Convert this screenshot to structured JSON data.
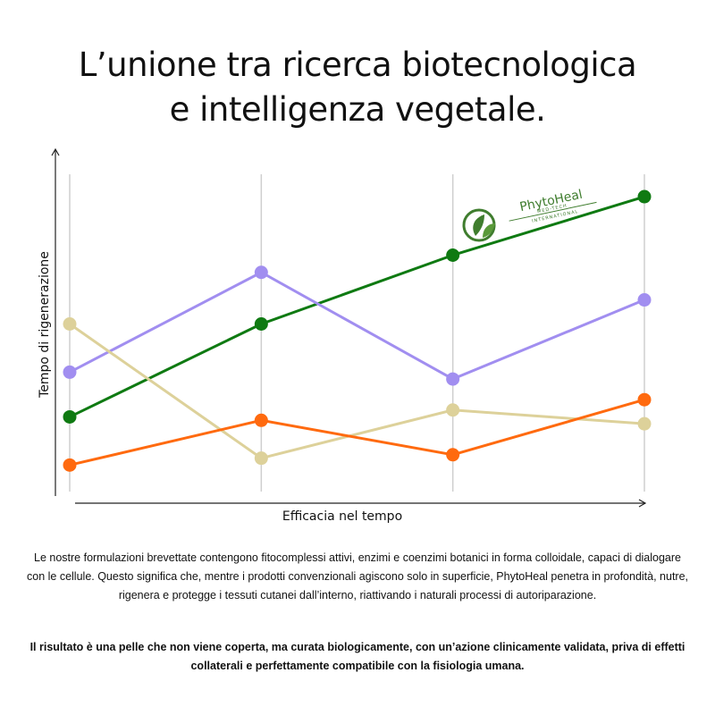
{
  "title_line1": "L’unione tra ricerca biotecnologica",
  "title_line2": "e intelligenza vegetale.",
  "logo": {
    "name": "PhytoHeal",
    "tagline1": "MED-TECH",
    "tagline2": "INTERNATIONAL"
  },
  "paragraph1": "Le nostre formulazioni brevettate contengono fitocomplessi attivi, enzimi e coenzimi botanici in forma colloidale, capaci di dialogare con le cellule. Questo significa che, mentre i prodotti convenzionali agiscono solo in superficie, PhytoHeal penetra in profondità, nutre, rigenera e protegge i tessuti cutanei dall’interno, riattivando i naturali processi di autoriparazione.",
  "paragraph2": "Il risultato è una pelle che non viene coperta, ma curata biologicamente, con un’azione clinicamente validata, priva di effetti collaterali e perfettamente compatibile con la fisiologia umana.",
  "chart_data": {
    "type": "line",
    "title": "",
    "xlabel": "Efficacia nel tempo",
    "ylabel": "Tempo di rigenerazione",
    "x": [
      1,
      2,
      3,
      4
    ],
    "xlim": [
      0.93,
      4.0
    ],
    "ylim": [
      0,
      100
    ],
    "grid": "vertical",
    "series": [
      {
        "name": "green",
        "color": "#0f7a12",
        "values": [
          23,
          50,
          70,
          87
        ]
      },
      {
        "name": "purple",
        "color": "#a18ef0",
        "values": [
          36,
          65,
          34,
          57
        ]
      },
      {
        "name": "tan",
        "color": "#ddd19a",
        "values": [
          50,
          11,
          25,
          21
        ]
      },
      {
        "name": "orange",
        "color": "#ff6a0f",
        "values": [
          9,
          22,
          12,
          28
        ]
      }
    ]
  }
}
